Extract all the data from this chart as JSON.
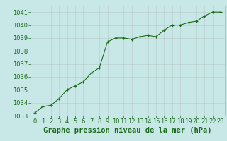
{
  "x": [
    0,
    1,
    2,
    3,
    4,
    5,
    6,
    7,
    8,
    9,
    10,
    11,
    12,
    13,
    14,
    15,
    16,
    17,
    18,
    19,
    20,
    21,
    22,
    23
  ],
  "y": [
    1033.2,
    1033.7,
    1033.8,
    1034.3,
    1035.0,
    1035.3,
    1035.6,
    1036.3,
    1036.7,
    1038.7,
    1039.0,
    1039.0,
    1038.9,
    1039.1,
    1039.2,
    1039.1,
    1039.6,
    1040.0,
    1040.0,
    1040.2,
    1040.3,
    1040.7,
    1041.0,
    1041.0
  ],
  "ylim": [
    1033.0,
    1041.5
  ],
  "yticks": [
    1033,
    1034,
    1035,
    1036,
    1037,
    1038,
    1039,
    1040,
    1041
  ],
  "xlim": [
    -0.5,
    23.5
  ],
  "xticks": [
    0,
    1,
    2,
    3,
    4,
    5,
    6,
    7,
    8,
    9,
    10,
    11,
    12,
    13,
    14,
    15,
    16,
    17,
    18,
    19,
    20,
    21,
    22,
    23
  ],
  "xlabel": "Graphe pression niveau de la mer (hPa)",
  "line_color": "#1a6b1a",
  "marker": "+",
  "marker_color": "#1a6b1a",
  "bg_color": "#c8e8e8",
  "grid_color": "#b0b0b0",
  "tick_label_color": "#1a6b1a",
  "xlabel_color": "#1a6b1a",
  "tick_fontsize": 6.0,
  "xlabel_fontsize": 7.5
}
